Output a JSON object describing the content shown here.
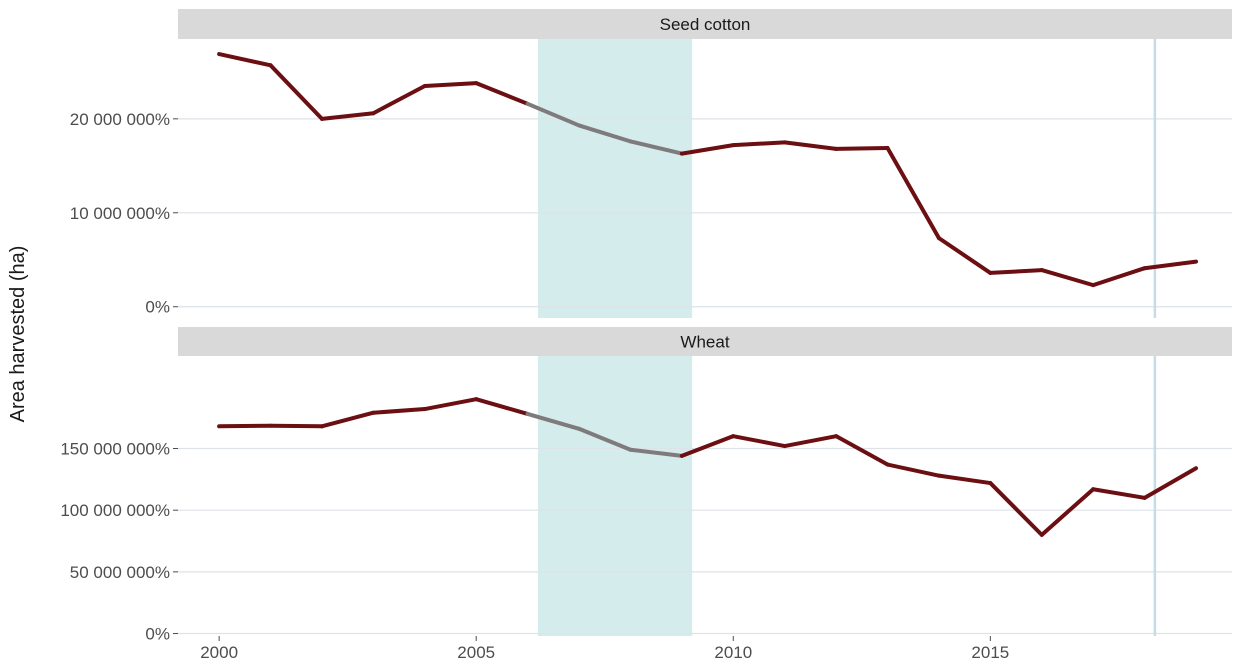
{
  "chart_data": {
    "type": "line",
    "ylabel": "Area harvested (ha)",
    "xlabel": "",
    "x_ticks": [
      2000,
      2005,
      2010,
      2015
    ],
    "xlim": [
      1999.2,
      2019.7
    ],
    "highlight_band": {
      "x_start": 2006.2,
      "x_end": 2009.2,
      "color": "#d5ecec"
    },
    "vertical_line": {
      "x": 2018.2,
      "color": "#c4dbe8"
    },
    "colors": {
      "line": "#6b0f12",
      "highlight_segment": "#7f7a7c",
      "grid": "#dde3e8",
      "strip": "#d9d9d9"
    },
    "panels": [
      {
        "strip": "Seed cotton",
        "ylim": [
          -1200000,
          28500000
        ],
        "y_ticks": [
          0,
          10000000,
          20000000
        ],
        "y_tick_labels": [
          "0%",
          "10 000 000%",
          "20 000 000%"
        ],
        "x": [
          2000,
          2001,
          2002,
          2003,
          2004,
          2005,
          2006,
          2007,
          2008,
          2009,
          2010,
          2011,
          2012,
          2013,
          2014,
          2015,
          2016,
          2017,
          2018,
          2019
        ],
        "values": [
          26900000,
          25700000,
          20000000,
          20600000,
          23500000,
          23800000,
          21600000,
          19300000,
          17600000,
          16300000,
          17200000,
          17500000,
          16800000,
          16900000,
          7300000,
          3600000,
          3900000,
          2300000,
          4100000,
          4800000
        ],
        "interpolated_range": [
          2006,
          2009
        ]
      },
      {
        "strip": "Wheat",
        "ylim": [
          -2000000,
          225000000
        ],
        "y_ticks": [
          0,
          50000000,
          100000000,
          150000000
        ],
        "y_tick_labels": [
          "0%",
          "50 000 000%",
          "100 000 000%",
          "150 000 000%"
        ],
        "x": [
          2000,
          2001,
          2002,
          2003,
          2004,
          2005,
          2006,
          2007,
          2008,
          2009,
          2010,
          2011,
          2012,
          2013,
          2014,
          2015,
          2016,
          2017,
          2018,
          2019
        ],
        "values": [
          168000000,
          168500000,
          168000000,
          179000000,
          182000000,
          190000000,
          178000000,
          166000000,
          149000000,
          144000000,
          160000000,
          152000000,
          160000000,
          137000000,
          128000000,
          122000000,
          80000000,
          117000000,
          110000000,
          134000000
        ],
        "interpolated_range": [
          2006,
          2009
        ]
      }
    ]
  }
}
